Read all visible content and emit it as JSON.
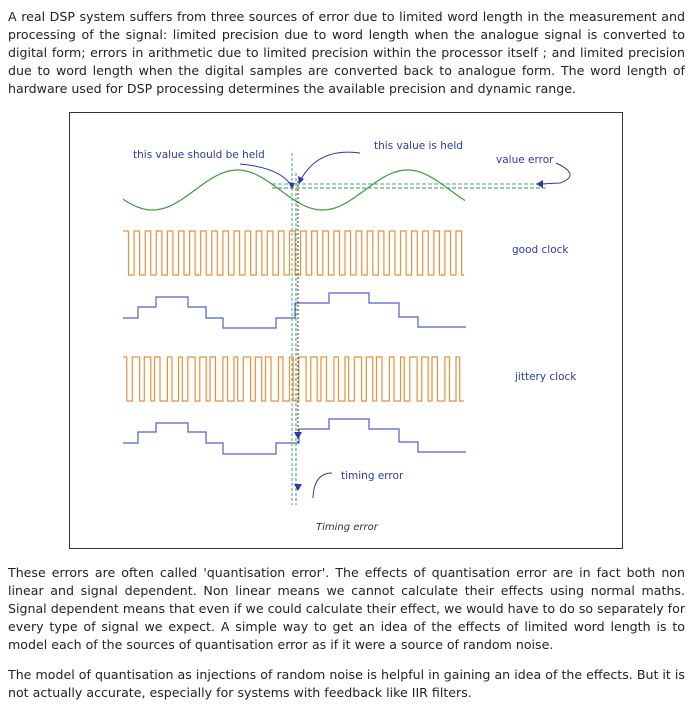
{
  "paragraphs": {
    "intro": "A real DSP system suffers from three sources of error due to limited word length in the measurement and processing of the signal: limited precision due to word length when the analogue signal is converted to digital form; errors in arithmetic due to limited precision within the processor itself ; and limited precision due to word length when the digital samples are converted back to analogue form. The word length of hardware used for DSP processing determines the available precision and dynamic range.",
    "quantisation": "These errors are often called 'quantisation error'. The effects of quantisation error are in fact both non linear and signal dependent. Non linear means we cannot calculate their effects using normal maths. Signal dependent means that even if we could calculate their effect, we would have to do so separately for every type of signal we expect. A simple way to get an idea of the effects of limited word length is to model each of the sources of quantisation error as if it were a source of random noise.",
    "model": "The model of quantisation as injections of random noise is helpful in gaining an idea of the effects. But it is not actually accurate, especially for systems with feedback like IIR filters."
  },
  "figure": {
    "labels": {
      "should_be_held": "this value should be held",
      "is_held": "this value is held",
      "value_error": "value error",
      "good_clock": "good clock",
      "jittery_clock": "jittery clock",
      "timing_error": "timing error"
    },
    "caption": "Timing error"
  },
  "colors": {
    "sine": "#3a9a3a",
    "clock": "#e8903a",
    "staircase": "#5060c8",
    "annotation": "#2b3aa8"
  }
}
